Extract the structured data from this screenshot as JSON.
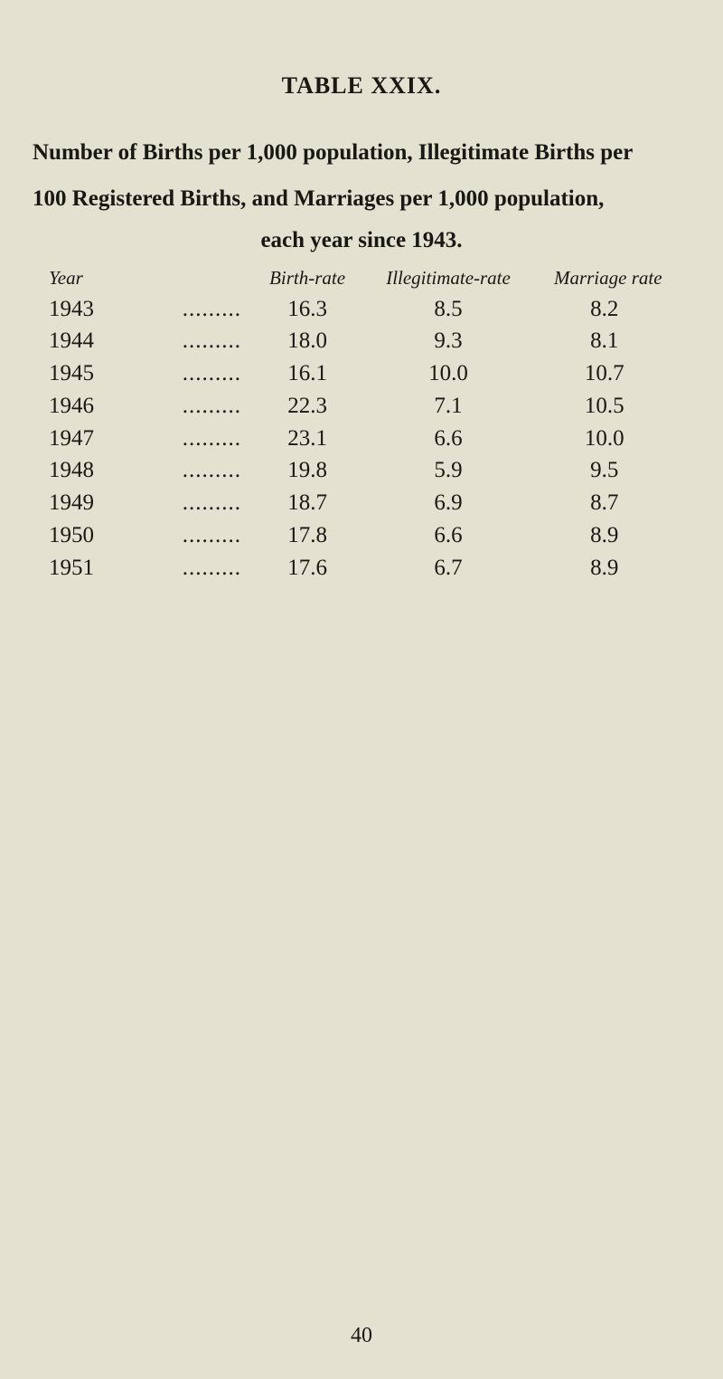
{
  "title": "TABLE XXIX.",
  "caption_lines": [
    "Number of Births per 1,000 population, Illegitimate Births per",
    "100 Registered Births, and Marriages per 1,000 population,"
  ],
  "caption_last": "each year since 1943.",
  "table": {
    "type": "table",
    "background_color": "#e3e1d0",
    "text_color": "#181814",
    "header_font_style": "italic",
    "body_fontsize_pt": 19,
    "header_fontsize_pt": 16,
    "columns": [
      {
        "key": "year",
        "label": "Year",
        "align": "left"
      },
      {
        "key": "birth",
        "label": "Birth-rate",
        "align": "center"
      },
      {
        "key": "illeg",
        "label": "Illegitimate-rate",
        "align": "center"
      },
      {
        "key": "marr",
        "label": "Marriage rate",
        "align": "center"
      }
    ],
    "dots": ".........",
    "rows": [
      {
        "year": "1943",
        "birth": "16.3",
        "illeg": "8.5",
        "marr": "8.2"
      },
      {
        "year": "1944",
        "birth": "18.0",
        "illeg": "9.3",
        "marr": "8.1"
      },
      {
        "year": "1945",
        "birth": "16.1",
        "illeg": "10.0",
        "marr": "10.7"
      },
      {
        "year": "1946",
        "birth": "22.3",
        "illeg": "7.1",
        "marr": "10.5"
      },
      {
        "year": "1947",
        "birth": "23.1",
        "illeg": "6.6",
        "marr": "10.0"
      },
      {
        "year": "1948",
        "birth": "19.8",
        "illeg": "5.9",
        "marr": "9.5"
      },
      {
        "year": "1949",
        "birth": "18.7",
        "illeg": "6.9",
        "marr": "8.7"
      },
      {
        "year": "1950",
        "birth": "17.8",
        "illeg": "6.6",
        "marr": "8.9"
      },
      {
        "year": "1951",
        "birth": "17.6",
        "illeg": "6.7",
        "marr": "8.9"
      }
    ]
  },
  "page_number": "40"
}
